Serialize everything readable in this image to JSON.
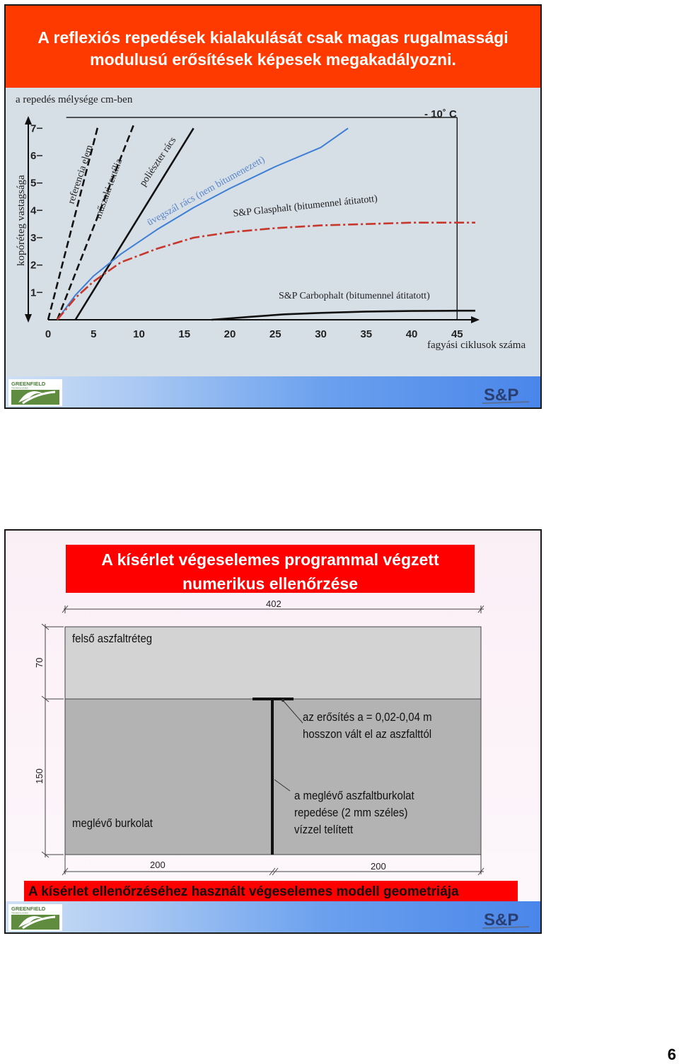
{
  "slide1": {
    "title_line1": "A reflexiós repedések kialakulását csak magas rugalmassági",
    "title_line2": "modulusú erősítések képesek megakadályozni.",
    "temperature": "- 10˚ C",
    "colors": {
      "title_band": "#ff3a00",
      "plot_bg": "#d6dee6",
      "blue_curve": "#3d7fd6",
      "red_curve": "#c8372b"
    },
    "chart_data": {
      "type": "line",
      "ylabel_top": "a repedés mélysége cm-ben",
      "ylabel_side": "kopóréteg vastagsága",
      "xlabel": "fagyási ciklusok száma",
      "x_ticks": [
        "0",
        "5",
        "10",
        "15",
        "20",
        "25",
        "30",
        "35",
        "40",
        "45"
      ],
      "y_ticks": [
        "1",
        "2",
        "3",
        "4",
        "5",
        "6",
        "7"
      ],
      "xlim": [
        0,
        47
      ],
      "ylim": [
        0,
        7.5
      ],
      "series": [
        {
          "name": "referencia elem",
          "style": "dashed",
          "color": "#111111",
          "x": [
            0,
            5.5
          ],
          "y": [
            0,
            7.1
          ]
        },
        {
          "name": "műszaki textília",
          "style": "dashed",
          "color": "#111111",
          "x": [
            1,
            9.5
          ],
          "y": [
            0,
            7.2
          ]
        },
        {
          "name": "poliészter rács",
          "style": "solid",
          "color": "#111111",
          "x": [
            3,
            16
          ],
          "y": [
            0,
            7.0
          ]
        },
        {
          "name": "üvegszál rács (nem bitumenezett)",
          "style": "solid",
          "color": "#3d7fd6",
          "x": [
            1,
            3,
            5,
            8,
            12,
            16,
            20,
            25,
            30,
            33
          ],
          "y": [
            0,
            0.9,
            1.6,
            2.4,
            3.3,
            4.1,
            4.8,
            5.6,
            6.3,
            7.0
          ]
        },
        {
          "name": "S&P Glasphalt (bitumennel átitatott)",
          "style": "dashdot",
          "color": "#c8372b",
          "x": [
            1,
            3,
            5,
            8,
            12,
            16,
            20,
            25,
            30,
            35,
            40,
            45,
            47
          ],
          "y": [
            0,
            0.8,
            1.4,
            2.1,
            2.6,
            3.0,
            3.2,
            3.35,
            3.45,
            3.5,
            3.55,
            3.55,
            3.55
          ]
        },
        {
          "name": "S&P Carbophalt (bitumennel átitatott)",
          "style": "solid",
          "color": "#111111",
          "x": [
            18,
            22,
            26,
            30,
            35,
            40,
            45,
            47
          ],
          "y": [
            0,
            0.1,
            0.2,
            0.25,
            0.3,
            0.32,
            0.33,
            0.33
          ]
        }
      ]
    }
  },
  "slide2": {
    "title_line1": "A kísérlet végeselemes programmal végzett",
    "title_line2": "numerikus ellenőrzése",
    "dim_top": "402",
    "dim_left_upper": "70",
    "dim_left_lower": "150",
    "dim_bottom_left": "200",
    "dim_bottom_right": "200",
    "layer_top": "felső aszfaltréteg",
    "layer_bottom": "meglévő burkolat",
    "note1_line1": "az erősítés a = 0,02-0,04 m",
    "note1_line2": "hosszon vált el az aszfalttól",
    "note2_line1": "a meglévő aszfaltburkolat",
    "note2_line2": "repedése (2 mm széles)",
    "note2_line3": "vízzel telített",
    "caption": "A kísérlet ellenőrzéséhez használt végeselemes modell geometriája",
    "colors": {
      "title_box": "#ff0000",
      "upper_layer": "#d3d3d3",
      "lower_layer": "#b3b3b3"
    }
  },
  "logos": {
    "greenfield": "GREENFIELD",
    "greenfield_sub": "TECHNOLOGIES",
    "sp": "S&P"
  },
  "page_number": "6"
}
